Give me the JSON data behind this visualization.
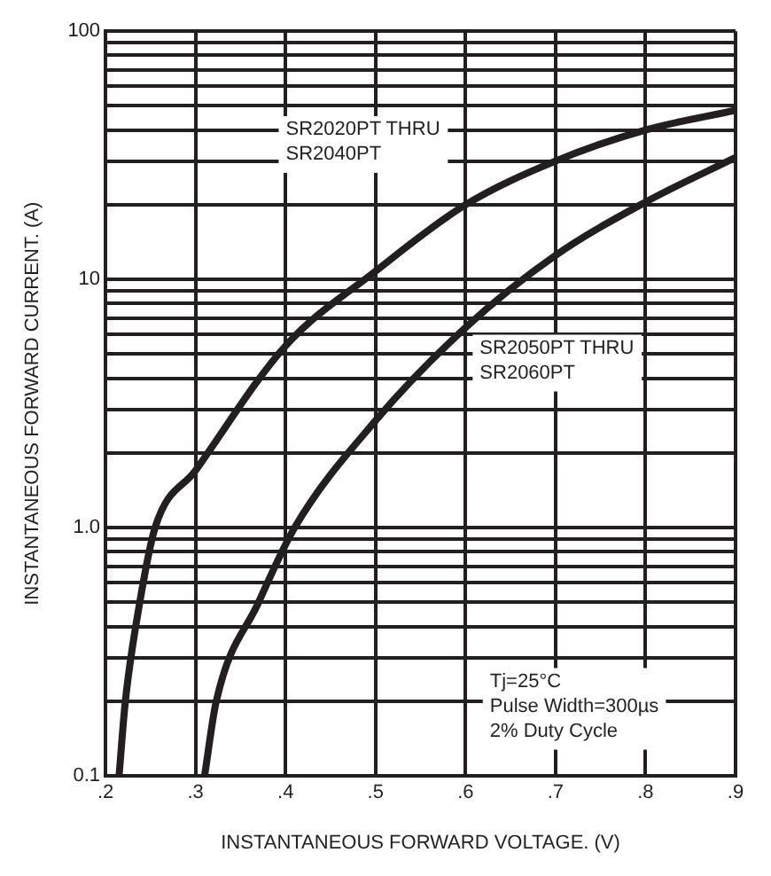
{
  "chart_data": {
    "type": "line",
    "xlabel": "INSTANTANEOUS FORWARD VOLTAGE. (V)",
    "ylabel": "INSTANTANEOUS FORWARD CURRENT. (A)",
    "series": [
      {
        "name": "SR2020PT THRU\nSR2040PT",
        "color": "#231f20",
        "x": [
          0.215,
          0.222,
          0.238,
          0.255,
          0.3,
          0.4,
          0.5,
          0.6,
          0.7,
          0.8,
          0.9
        ],
        "values": [
          0.1,
          0.2,
          0.5,
          1.0,
          1.7,
          5.4,
          10.8,
          20,
          30,
          40,
          48
        ]
      },
      {
        "name": "SR2050PT THRU\nSR2060PT",
        "color": "#231f20",
        "x": [
          0.31,
          0.323,
          0.37,
          0.41,
          0.5,
          0.6,
          0.7,
          0.8,
          0.9
        ],
        "values": [
          0.1,
          0.2,
          0.5,
          1.0,
          2.7,
          6.4,
          12.5,
          20.5,
          31
        ]
      }
    ],
    "xlim": [
      0.2,
      0.9
    ],
    "xticks": [
      {
        "value": 0.2,
        "label": ".2"
      },
      {
        "value": 0.3,
        "label": ".3"
      },
      {
        "value": 0.4,
        "label": ".4"
      },
      {
        "value": 0.5,
        "label": ".5"
      },
      {
        "value": 0.6,
        "label": ".6"
      },
      {
        "value": 0.7,
        "label": ".7"
      },
      {
        "value": 0.8,
        "label": ".8"
      },
      {
        "value": 0.9,
        "label": ".9"
      }
    ],
    "ylim": [
      0.1,
      100
    ],
    "yticks": [
      0.1,
      {
        "value": 0.2,
        "label": null
      },
      {
        "value": 0.3,
        "label": null
      },
      {
        "value": 0.4,
        "label": null
      },
      {
        "value": 0.5,
        "label": null
      },
      {
        "value": 0.6,
        "label": null
      },
      {
        "value": 0.7,
        "label": null
      },
      {
        "value": 0.8,
        "label": null
      },
      {
        "value": 0.9,
        "label": null
      },
      {
        "value": 1,
        "label": "1.0"
      },
      {
        "value": 2,
        "label": null
      },
      {
        "value": 3,
        "label": null
      },
      {
        "value": 4,
        "label": null
      },
      {
        "value": 5,
        "label": null
      },
      {
        "value": 6,
        "label": null
      },
      {
        "value": 7,
        "label": null
      },
      {
        "value": 8,
        "label": null
      },
      {
        "value": 9,
        "label": null
      },
      10,
      {
        "value": 20,
        "label": null
      },
      {
        "value": 30,
        "label": null
      },
      {
        "value": 40,
        "label": null
      },
      {
        "value": 50,
        "label": null
      },
      {
        "value": 60,
        "label": null
      },
      {
        "value": 70,
        "label": null
      },
      {
        "value": 80,
        "label": null
      },
      {
        "value": 90,
        "label": null
      },
      100
    ],
    "log": "y",
    "grid": true,
    "legend": false,
    "marker": "none",
    "line_style": "solid",
    "annotations": [
      "Tj=25°C\nPulse Width=300µs\n2% Duty Cycle"
    ]
  }
}
